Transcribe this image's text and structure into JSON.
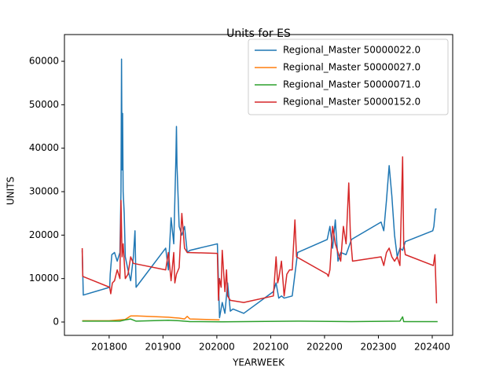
{
  "chart_data": {
    "type": "line",
    "title": "Units for ES",
    "x_label": "YEARWEEK",
    "y_label": "UNITS",
    "xlim": [
      201717,
      202438
    ],
    "xticks": [
      201800,
      201900,
      202000,
      202100,
      202200,
      202300,
      202400
    ],
    "ylim": [
      -3070,
      66150
    ],
    "yticks": [
      0,
      10000,
      20000,
      30000,
      40000,
      50000,
      60000
    ],
    "legend": "upper right",
    "series": [
      {
        "name": "Regional_Master 50000022.0",
        "color": "#1f77b4",
        "x": [
          201750,
          201752,
          201801,
          201802,
          201805,
          201810,
          201815,
          201820,
          201822,
          201823,
          201824,
          201825,
          201826,
          201828,
          201830,
          201835,
          201840,
          201845,
          201848,
          201850,
          201905,
          201910,
          201915,
          201920,
          201924,
          201925,
          201926,
          201930,
          201935,
          201940,
          201945,
          201950,
          202001,
          202005,
          202010,
          202015,
          202020,
          202025,
          202030,
          202040,
          202050,
          202105,
          202110,
          202115,
          202120,
          202125,
          202140,
          202150,
          202205,
          202210,
          202215,
          202220,
          202225,
          202230,
          202240,
          202250,
          202305,
          202310,
          202315,
          202320,
          202325,
          202330,
          202335,
          202340,
          202345,
          202350,
          202401,
          202403,
          202406,
          202408
        ],
        "values": [
          16500,
          6200,
          8000,
          11000,
          15500,
          16000,
          14000,
          16000,
          30000,
          60500,
          35000,
          48000,
          30000,
          25000,
          15000,
          12000,
          9500,
          15000,
          21000,
          8000,
          17000,
          12000,
          24000,
          18000,
          38000,
          45000,
          36000,
          22000,
          20000,
          22000,
          16000,
          16500,
          18000,
          1000,
          4500,
          2000,
          9000,
          2500,
          3000,
          2500,
          2000,
          7000,
          9000,
          5500,
          6000,
          5500,
          6000,
          16000,
          19000,
          22000,
          17000,
          23500,
          14000,
          16000,
          15500,
          19000,
          23000,
          21000,
          28000,
          36000,
          29000,
          20000,
          15000,
          17000,
          16500,
          18500,
          21000,
          22000,
          26000,
          26000
        ]
      },
      {
        "name": "Regional_Master 50000027.0",
        "color": "#ff7f0e",
        "x": [
          201750,
          201800,
          201830,
          201840,
          201852,
          201910,
          201920,
          201930,
          201940,
          201945,
          201950,
          202005
        ],
        "values": [
          300,
          300,
          600,
          1400,
          1400,
          1100,
          1000,
          900,
          700,
          1300,
          700,
          500
        ]
      },
      {
        "name": "Regional_Master 50000071.0",
        "color": "#2ca02c",
        "x": [
          201750,
          201820,
          201830,
          201840,
          201850,
          201910,
          201930,
          201950,
          202010,
          202050,
          202150,
          202250,
          202340,
          202345,
          202347,
          202410
        ],
        "values": [
          200,
          200,
          500,
          700,
          200,
          400,
          300,
          100,
          50,
          100,
          200,
          100,
          200,
          1200,
          100,
          100
        ]
      },
      {
        "name": "Regional_Master 50000152.0",
        "color": "#d62728",
        "x": [
          201750,
          201751,
          201801,
          201803,
          201806,
          201810,
          201815,
          201820,
          201822,
          201824,
          201826,
          201830,
          201835,
          201840,
          201845,
          201905,
          201910,
          201915,
          201920,
          201922,
          201925,
          201930,
          201935,
          201940,
          201945,
          202001,
          202003,
          202005,
          202008,
          202010,
          202015,
          202018,
          202020,
          202025,
          202050,
          202105,
          202110,
          202113,
          202115,
          202120,
          202125,
          202130,
          202135,
          202140,
          202145,
          202148,
          202205,
          202207,
          202210,
          202215,
          202220,
          202225,
          202230,
          202235,
          202240,
          202245,
          202248,
          202252,
          202305,
          202310,
          202315,
          202320,
          202325,
          202330,
          202335,
          202340,
          202345,
          202347,
          202350,
          202402,
          202405,
          202408
        ],
        "values": [
          17000,
          10500,
          8000,
          6500,
          9000,
          9500,
          12000,
          10000,
          28000,
          15000,
          18000,
          10000,
          11000,
          15000,
          13500,
          12000,
          16000,
          9500,
          16000,
          9000,
          11000,
          12500,
          25000,
          17000,
          16000,
          15800,
          5000,
          10000,
          8000,
          16500,
          7000,
          12000,
          6000,
          5000,
          4500,
          6000,
          15000,
          9000,
          10000,
          14000,
          6000,
          11000,
          12000,
          12000,
          23500,
          15000,
          11000,
          10500,
          12000,
          22000,
          18000,
          16000,
          14000,
          22000,
          18000,
          32000,
          20000,
          14000,
          15000,
          13000,
          16000,
          17000,
          15000,
          14000,
          15000,
          13000,
          38000,
          18000,
          15500,
          13000,
          15500,
          4300
        ]
      }
    ]
  }
}
